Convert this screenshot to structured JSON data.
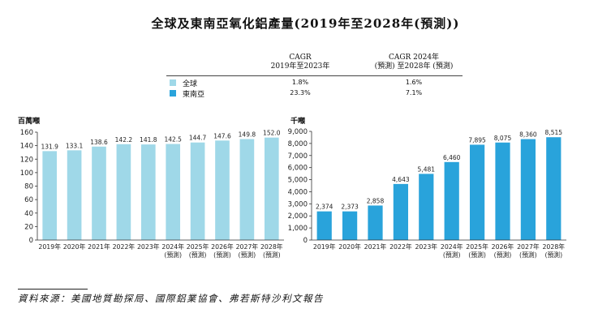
{
  "title": "全球及東南亞氧化鋁產量(2019年至2028年(預測))",
  "cagr": {
    "col1": [
      "CAGR",
      "2019年至2023年"
    ],
    "col2": [
      "CAGR 2024年",
      "(預測) 至2028年 (預測)"
    ],
    "rows": [
      {
        "label": "全球",
        "v1": "1.8%",
        "v2": "1.6%",
        "color": "#9fd8e8"
      },
      {
        "label": "東南亞",
        "v1": "23.3%",
        "v2": "7.1%",
        "color": "#29a3db"
      }
    ]
  },
  "chart_data": [
    {
      "type": "bar",
      "unit": "百萬噸",
      "categories": [
        [
          "2019年"
        ],
        [
          "2020年"
        ],
        [
          "2021年"
        ],
        [
          "2022年"
        ],
        [
          "2023年"
        ],
        [
          "2024年",
          "(預測)"
        ],
        [
          "2025年",
          "(預測)"
        ],
        [
          "2026年",
          "(預測)"
        ],
        [
          "2027年",
          "(預測)"
        ],
        [
          "2028年",
          "(預測)"
        ]
      ],
      "values": [
        131.9,
        133.1,
        138.6,
        142.2,
        141.8,
        142.5,
        144.7,
        147.6,
        149.8,
        152.0
      ],
      "labels": [
        "131.9",
        "133.1",
        "138.6",
        "142.2",
        "141.8",
        "142.5",
        "144.7",
        "147.6",
        "149.8",
        "152.0"
      ],
      "ylim": [
        0,
        160
      ],
      "yticks": [
        "0",
        "20",
        "40",
        "60",
        "80",
        "100",
        "120",
        "140",
        "160"
      ],
      "color": "#9fd8e8"
    },
    {
      "type": "bar",
      "unit": "千噸",
      "categories": [
        [
          "2019年"
        ],
        [
          "2020年"
        ],
        [
          "2021年"
        ],
        [
          "2022年"
        ],
        [
          "2023年"
        ],
        [
          "2024年",
          "(預測)"
        ],
        [
          "2025年",
          "(預測)"
        ],
        [
          "2026年",
          "(預測)"
        ],
        [
          "2027年",
          "(預測)"
        ],
        [
          "2028年",
          "(預測)"
        ]
      ],
      "values": [
        2374,
        2373,
        2858,
        4643,
        5481,
        6460,
        7895,
        8075,
        8360,
        8515
      ],
      "labels": [
        "2,374",
        "2,373",
        "2,858",
        "4,643",
        "5,481",
        "6,460",
        "7,895",
        "8,075",
        "8,360",
        "8,515"
      ],
      "ylim": [
        0,
        9000
      ],
      "yticks": [
        "0",
        "1,000",
        "2,000",
        "3,000",
        "4,000",
        "5,000",
        "6,000",
        "7,000",
        "8,000",
        "9,000"
      ],
      "color": "#29a3db"
    }
  ],
  "source": "資料來源：美國地質勘探局、國際鋁業協會、弗若斯特沙利文報告"
}
